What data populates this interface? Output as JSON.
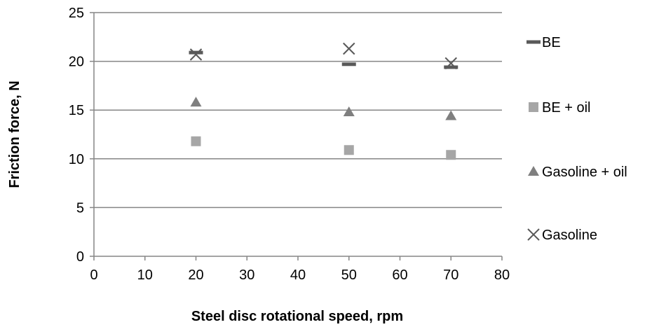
{
  "chart_data": {
    "type": "scatter",
    "title": "",
    "xlabel": "Steel disc rotational speed, rpm",
    "ylabel": "Friction force, N",
    "xlim": [
      0,
      80
    ],
    "ylim": [
      0,
      25
    ],
    "xticks": [
      0,
      10,
      20,
      30,
      40,
      50,
      60,
      70,
      80
    ],
    "yticks": [
      0,
      5,
      10,
      15,
      20,
      25
    ],
    "grid": "horizontal",
    "legend_position": "right",
    "series": [
      {
        "name": "BE",
        "marker": "dash",
        "color": "#595959",
        "points": [
          {
            "x": 20,
            "y": 20.9
          },
          {
            "x": 50,
            "y": 19.7
          },
          {
            "x": 70,
            "y": 19.4
          }
        ]
      },
      {
        "name": "BE + oil",
        "marker": "square",
        "color": "#a6a6a6",
        "points": [
          {
            "x": 20,
            "y": 11.8
          },
          {
            "x": 50,
            "y": 10.9
          },
          {
            "x": 70,
            "y": 10.4
          }
        ]
      },
      {
        "name": "Gasoline + oil",
        "marker": "triangle",
        "color": "#7f7f7f",
        "points": [
          {
            "x": 20,
            "y": 15.8
          },
          {
            "x": 50,
            "y": 14.8
          },
          {
            "x": 70,
            "y": 14.4
          }
        ]
      },
      {
        "name": "Gasoline",
        "marker": "x",
        "color": "#595959",
        "points": [
          {
            "x": 20,
            "y": 20.7
          },
          {
            "x": 50,
            "y": 21.3
          },
          {
            "x": 70,
            "y": 19.8
          }
        ]
      }
    ]
  }
}
